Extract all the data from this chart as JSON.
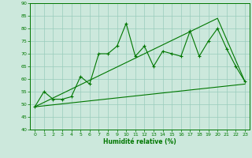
{
  "title": "",
  "xlabel": "Humidité relative (%)",
  "ylabel": "",
  "bg_color": "#cce8dc",
  "grid_color": "#99ccbb",
  "line_color": "#007700",
  "xlim": [
    -0.5,
    23.5
  ],
  "ylim": [
    40,
    90
  ],
  "yticks": [
    40,
    45,
    50,
    55,
    60,
    65,
    70,
    75,
    80,
    85,
    90
  ],
  "xticks": [
    0,
    1,
    2,
    3,
    4,
    5,
    6,
    7,
    8,
    9,
    10,
    11,
    12,
    13,
    14,
    15,
    16,
    17,
    18,
    19,
    20,
    21,
    22,
    23
  ],
  "main_x": [
    0,
    1,
    2,
    3,
    4,
    5,
    6,
    7,
    8,
    9,
    10,
    11,
    12,
    13,
    14,
    15,
    16,
    17,
    18,
    19,
    20,
    21,
    22,
    23
  ],
  "main_y": [
    49,
    55,
    52,
    52,
    53,
    61,
    58,
    70,
    70,
    73,
    82,
    69,
    73,
    65,
    71,
    70,
    69,
    79,
    69,
    75,
    80,
    72,
    65,
    59
  ],
  "lower_line_x": [
    0,
    23
  ],
  "lower_line_y": [
    49,
    58
  ],
  "upper_line_x": [
    0,
    20,
    23
  ],
  "upper_line_y": [
    49,
    84,
    59
  ],
  "xlabel_fontsize": 5.5,
  "tick_fontsize": 4.5
}
